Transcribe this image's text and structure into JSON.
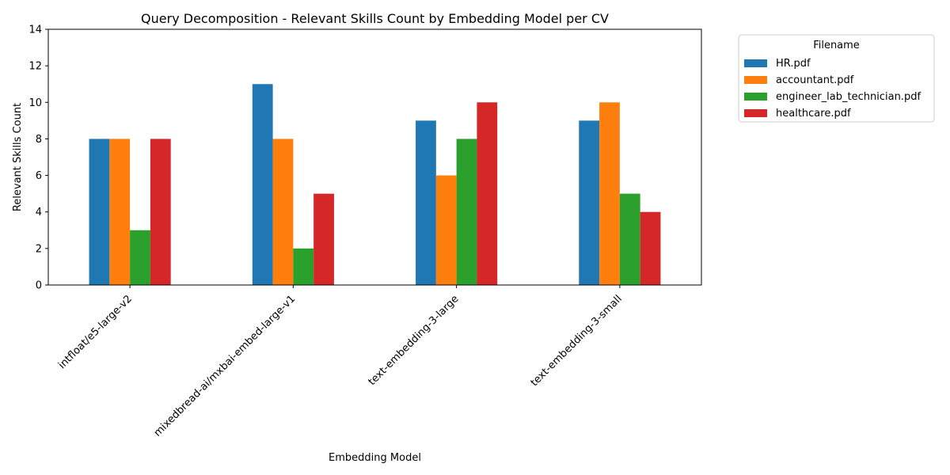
{
  "chart_data": {
    "type": "bar",
    "title": "Query Decomposition - Relevant Skills Count by Embedding Model per CV",
    "xlabel": "Embedding Model",
    "ylabel": "Relevant Skills Count",
    "ylim": [
      0,
      14
    ],
    "yticks": [
      0,
      2,
      4,
      6,
      8,
      10,
      12,
      14
    ],
    "grid": false,
    "legend_title": "Filename",
    "legend_position": "outside-top-right",
    "categories": [
      "intfloat/e5-large-v2",
      "mixedbread-ai/mxbai-embed-large-v1",
      "text-embedding-3-large",
      "text-embedding-3-small"
    ],
    "series": [
      {
        "name": "HR.pdf",
        "color": "#1f77b4",
        "values": [
          8,
          11,
          9,
          9
        ]
      },
      {
        "name": "accountant.pdf",
        "color": "#ff7f0e",
        "values": [
          8,
          8,
          6,
          10
        ]
      },
      {
        "name": "engineer_lab_technician.pdf",
        "color": "#2ca02c",
        "values": [
          3,
          2,
          8,
          5
        ]
      },
      {
        "name": "healthcare.pdf",
        "color": "#d62728",
        "values": [
          8,
          5,
          10,
          4
        ]
      }
    ]
  }
}
